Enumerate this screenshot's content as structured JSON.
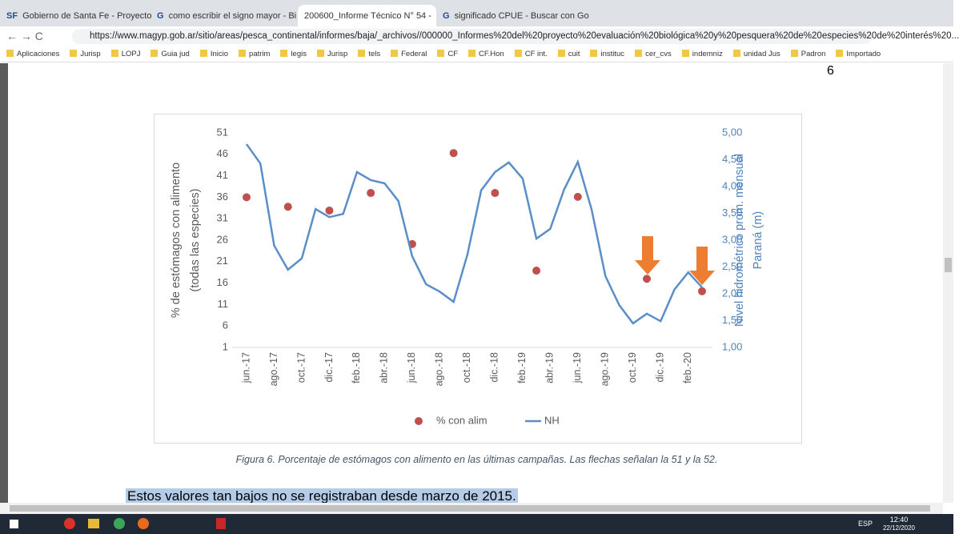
{
  "browser": {
    "tabs": [
      {
        "icon": "SF",
        "title": "Gobierno de Santa Fe - Proyecto"
      },
      {
        "icon": "G",
        "title": "como escribir el signo mayor - Bi"
      },
      {
        "title": "200600_Informe Técnico N° 54 -"
      },
      {
        "icon": "G",
        "title": "significado CPUE - Buscar con Go"
      }
    ],
    "url": "https://www.magyp.gob.ar/sitio/areas/pesca_continental/informes/baja/_archivos//000000_Informes%20del%20proyecto%20evaluación%20biológica%20y%20pesquera%20de%20especies%20de%20interés%20...",
    "bookmarks": [
      "Aplicaciones",
      "Jurisp",
      "LOPJ",
      "Guia jud",
      "Inicio",
      "patrim",
      "legis",
      "Jurisp",
      "tels",
      "Federal",
      "CF",
      "CF.Hon",
      "CF int.",
      "cuit",
      "instituc",
      "cer_cvs",
      "indemniz",
      "unidad Jus",
      "Padron",
      "Importado"
    ]
  },
  "page": {
    "page_number": "6",
    "caption": "Figura 6. Porcentaje de estómagos con alimento en las últimas campañas. Las flechas señalan la 51 y la 52.",
    "highlight": "Estos valores tan bajos no se registraban desde marzo de 2015."
  },
  "chart_data": {
    "type": "combo",
    "ylabel": [
      "% de estómagos con alimento",
      "(todas las especies)"
    ],
    "y2label": [
      "Nivel hidrométrico prom. mensual",
      "Paraná (m)"
    ],
    "categories": [
      "jun.-17",
      null,
      "ago.-17",
      null,
      "oct.-17",
      null,
      "dic.-17",
      null,
      "feb.-18",
      null,
      "abr.-18",
      null,
      "jun.-18",
      null,
      "ago.-18",
      null,
      "oct.-18",
      null,
      "dic.-18",
      null,
      "feb.-19",
      null,
      "abr.-19",
      null,
      "jun.-19",
      null,
      "ago.-19",
      null,
      "oct.-19",
      null,
      "dic.-19",
      null,
      "feb.-20",
      null
    ],
    "series": [
      {
        "name": "% con alim",
        "type": "scatter",
        "color": "#c0504d",
        "values": [
          36,
          null,
          null,
          33.8,
          null,
          null,
          32.9,
          null,
          null,
          37,
          null,
          null,
          25.1,
          null,
          null,
          46.3,
          null,
          null,
          37,
          null,
          null,
          18.9,
          null,
          null,
          36.1,
          null,
          null,
          null,
          null,
          17,
          null,
          null,
          null,
          14.1
        ]
      },
      {
        "name": "NH",
        "type": "line",
        "axis": "y2",
        "color": "#5b8ec9",
        "values": [
          4.79,
          4.43,
          2.9,
          2.45,
          2.66,
          3.58,
          3.43,
          3.49,
          4.27,
          4.12,
          4.06,
          3.73,
          2.7,
          2.18,
          2.04,
          1.85,
          2.73,
          3.93,
          4.27,
          4.45,
          4.15,
          3.03,
          3.21,
          3.94,
          4.46,
          3.57,
          2.33,
          1.79,
          1.45,
          1.63,
          1.49,
          2.08,
          2.4,
          2.12
        ]
      }
    ],
    "ylim": [
      1,
      51
    ],
    "yticks": [
      1,
      6,
      11,
      16,
      21,
      26,
      31,
      36,
      41,
      46,
      51
    ],
    "y2lim": [
      1,
      5
    ],
    "y2ticks": [
      {
        "value": 1,
        "label": "1,00"
      },
      {
        "value": 1.5,
        "label": "1,50"
      },
      {
        "value": 2,
        "label": "2,00"
      },
      {
        "value": 2.5,
        "label": "2,50"
      },
      {
        "value": 3,
        "label": "3,00"
      },
      {
        "value": 3.5,
        "label": "3,50"
      },
      {
        "value": 4,
        "label": "4,00"
      },
      {
        "value": 4.5,
        "label": "4,50"
      },
      {
        "value": 5,
        "label": "5,00"
      }
    ],
    "legend": "bottom"
  },
  "taskbar": {
    "language": "ESP",
    "time": "12:40",
    "date": "22/12/2020"
  }
}
